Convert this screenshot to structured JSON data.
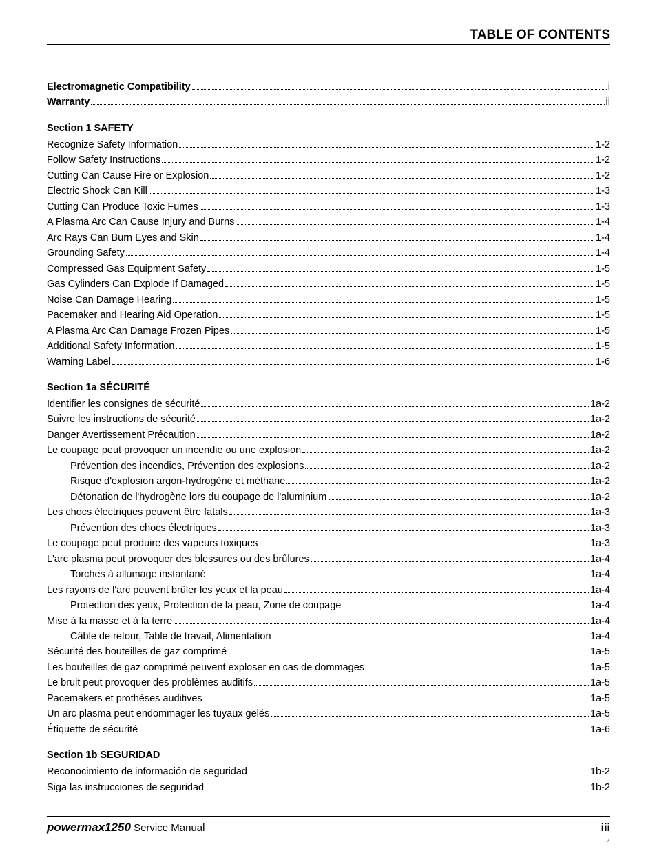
{
  "header": {
    "title": "TABLE OF CONTENTS"
  },
  "front_matter": [
    {
      "label": "Electromagnetic Compatibility",
      "page": "i",
      "bold": true,
      "indent": 0
    },
    {
      "label": "Warranty",
      "page": "ii",
      "bold": true,
      "indent": 0
    }
  ],
  "sections": [
    {
      "heading": "Section 1   SAFETY",
      "entries": [
        {
          "label": "Recognize Safety Information",
          "page": "1-2",
          "indent": 0
        },
        {
          "label": "Follow Safety Instructions",
          "page": "1-2",
          "indent": 0
        },
        {
          "label": "Cutting Can Cause Fire or Explosion",
          "page": "1-2",
          "indent": 0
        },
        {
          "label": "Electric Shock Can Kill",
          "page": "1-3",
          "indent": 0
        },
        {
          "label": "Cutting Can Produce Toxic Fumes",
          "page": "1-3",
          "indent": 0
        },
        {
          "label": "A Plasma Arc Can Cause Injury and Burns",
          "page": "1-4",
          "indent": 0
        },
        {
          "label": "Arc Rays Can Burn Eyes and Skin",
          "page": "1-4",
          "indent": 0
        },
        {
          "label": "Grounding Safety",
          "page": "1-4",
          "indent": 0
        },
        {
          "label": "Compressed Gas Equipment Safety",
          "page": "1-5",
          "indent": 0
        },
        {
          "label": "Gas Cylinders Can Explode If Damaged",
          "page": "1-5",
          "indent": 0
        },
        {
          "label": "Noise Can Damage Hearing",
          "page": "1-5",
          "indent": 0
        },
        {
          "label": "Pacemaker and Hearing Aid Operation",
          "page": "1-5",
          "indent": 0
        },
        {
          "label": "A Plasma Arc Can Damage Frozen Pipes",
          "page": "1-5",
          "indent": 0
        },
        {
          "label": "Additional Safety Information",
          "page": "1-5",
          "indent": 0
        },
        {
          "label": "Warning Label",
          "page": "1-6",
          "indent": 0
        }
      ]
    },
    {
      "heading": "Section 1a   SÉCURITÉ",
      "entries": [
        {
          "label": "Identifier les consignes de sécurité",
          "page": "1a-2",
          "indent": 0
        },
        {
          "label": "Suivre les instructions de sécurité",
          "page": "1a-2",
          "indent": 0
        },
        {
          "label": "Danger  Avertissement  Précaution",
          "page": "1a-2",
          "indent": 0
        },
        {
          "label": "Le coupage peut provoquer un incendie ou une explosion",
          "page": "1a-2",
          "indent": 0
        },
        {
          "label": "Prévention des incendies, Prévention des explosions",
          "page": "1a-2",
          "indent": 1
        },
        {
          "label": "Risque d'explosion argon-hydrogène et méthane",
          "page": "1a-2",
          "indent": 1
        },
        {
          "label": "Détonation de l'hydrogène lors du coupage de l'aluminium",
          "page": "1a-2",
          "indent": 1
        },
        {
          "label": "Les chocs électriques peuvent être fatals",
          "page": "1a-3",
          "indent": 0
        },
        {
          "label": "Prévention des chocs électriques",
          "page": "1a-3",
          "indent": 1
        },
        {
          "label": "Le coupage peut produire des vapeurs toxiques",
          "page": "1a-3",
          "indent": 0
        },
        {
          "label": "L'arc plasma peut provoquer des blessures ou des brûlures",
          "page": "1a-4",
          "indent": 0
        },
        {
          "label": "Torches à allumage instantané",
          "page": "1a-4",
          "indent": 1
        },
        {
          "label": "Les rayons de l'arc peuvent brûler les yeux et la peau",
          "page": "1a-4",
          "indent": 0
        },
        {
          "label": "Protection des yeux, Protection de la peau, Zone de coupage",
          "page": "1a-4",
          "indent": 1
        },
        {
          "label": "Mise à la masse et à la terre",
          "page": "1a-4",
          "indent": 0
        },
        {
          "label": "Câble de retour, Table de travail, Alimentation",
          "page": "1a-4",
          "indent": 1
        },
        {
          "label": "Sécurité des bouteilles de gaz comprimé",
          "page": "1a-5",
          "indent": 0
        },
        {
          "label": "Les bouteilles de gaz comprimé peuvent exploser en cas de dommages",
          "page": "1a-5",
          "indent": 0
        },
        {
          "label": "Le bruit peut provoquer des problèmes auditifs",
          "page": "1a-5",
          "indent": 0
        },
        {
          "label": "Pacemakers et prothèses auditives",
          "page": "1a-5",
          "indent": 0
        },
        {
          "label": "Un arc plasma peut endommager les tuyaux gelés",
          "page": "1a-5",
          "indent": 0
        },
        {
          "label": "Étiquette de sécurité",
          "page": "1a-6",
          "indent": 0
        }
      ]
    },
    {
      "heading": "Section 1b   SEGURIDAD",
      "entries": [
        {
          "label": "Reconocimiento de información de seguridad",
          "page": "1b-2",
          "indent": 0
        },
        {
          "label": "Siga las instrucciones de seguridad",
          "page": "1b-2",
          "indent": 0
        }
      ]
    }
  ],
  "footer": {
    "product": "powermax1250",
    "manual": "Service Manual",
    "roman": "iii",
    "tiny": "4"
  }
}
